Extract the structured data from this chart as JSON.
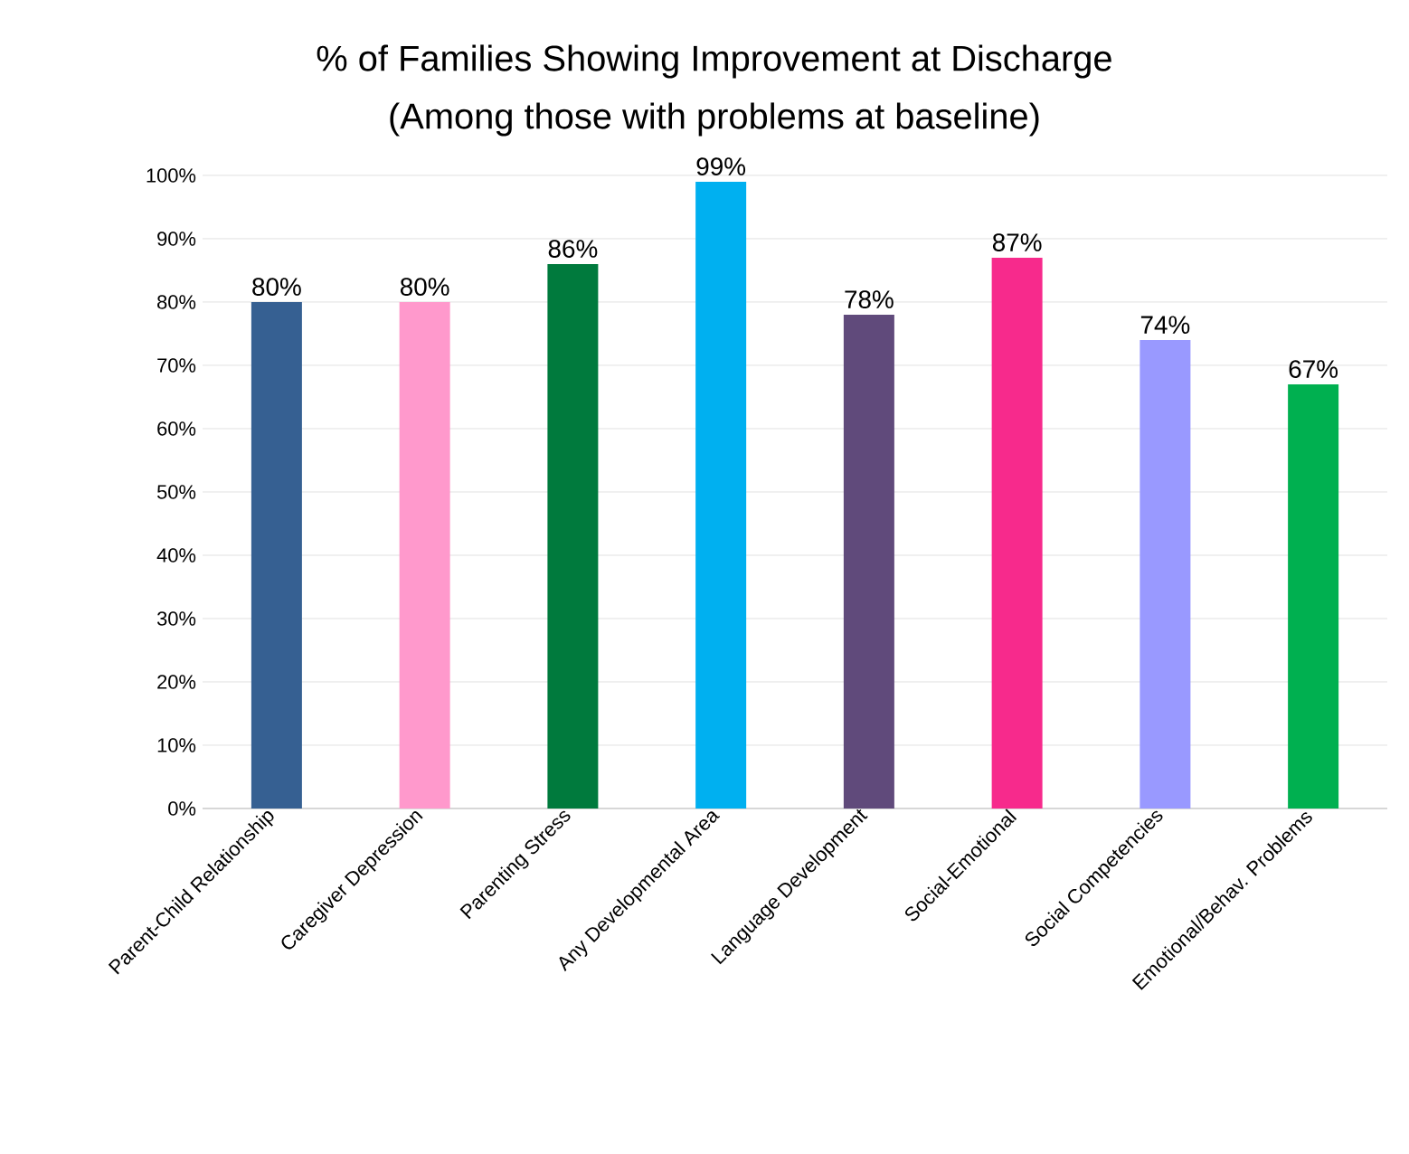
{
  "chart_data": {
    "type": "bar",
    "title": "% of Families Showing Improvement at Discharge",
    "subtitle": "(Among those with problems at baseline)",
    "categories": [
      "Parent-Child Relationship",
      "Caregiver Depression",
      "Parenting Stress",
      "Any Developmental Area",
      "Language Development",
      "Social-Emotional",
      "Social Competencies",
      "Emotional/Behav. Problems"
    ],
    "values": [
      80,
      80,
      86,
      99,
      78,
      87,
      74,
      67
    ],
    "value_labels": [
      "80%",
      "80%",
      "86%",
      "99%",
      "78%",
      "87%",
      "74%",
      "67%"
    ],
    "colors": [
      "#366092",
      "#ff99cc",
      "#007a3d",
      "#00b0f0",
      "#604a7b",
      "#f72a8c",
      "#9999ff",
      "#00b050"
    ],
    "ylim": [
      0,
      100
    ],
    "yticks": [
      {
        "value": 0,
        "label": "0%"
      },
      {
        "value": 10,
        "label": "10%"
      },
      {
        "value": 20,
        "label": "20%"
      },
      {
        "value": 30,
        "label": "30%"
      },
      {
        "value": 40,
        "label": "40%"
      },
      {
        "value": 50,
        "label": "50%"
      },
      {
        "value": 60,
        "label": "60%"
      },
      {
        "value": 70,
        "label": "70%"
      },
      {
        "value": 80,
        "label": "80%"
      },
      {
        "value": 90,
        "label": "90%"
      },
      {
        "value": 100,
        "label": "100%"
      }
    ],
    "grid": "y"
  }
}
